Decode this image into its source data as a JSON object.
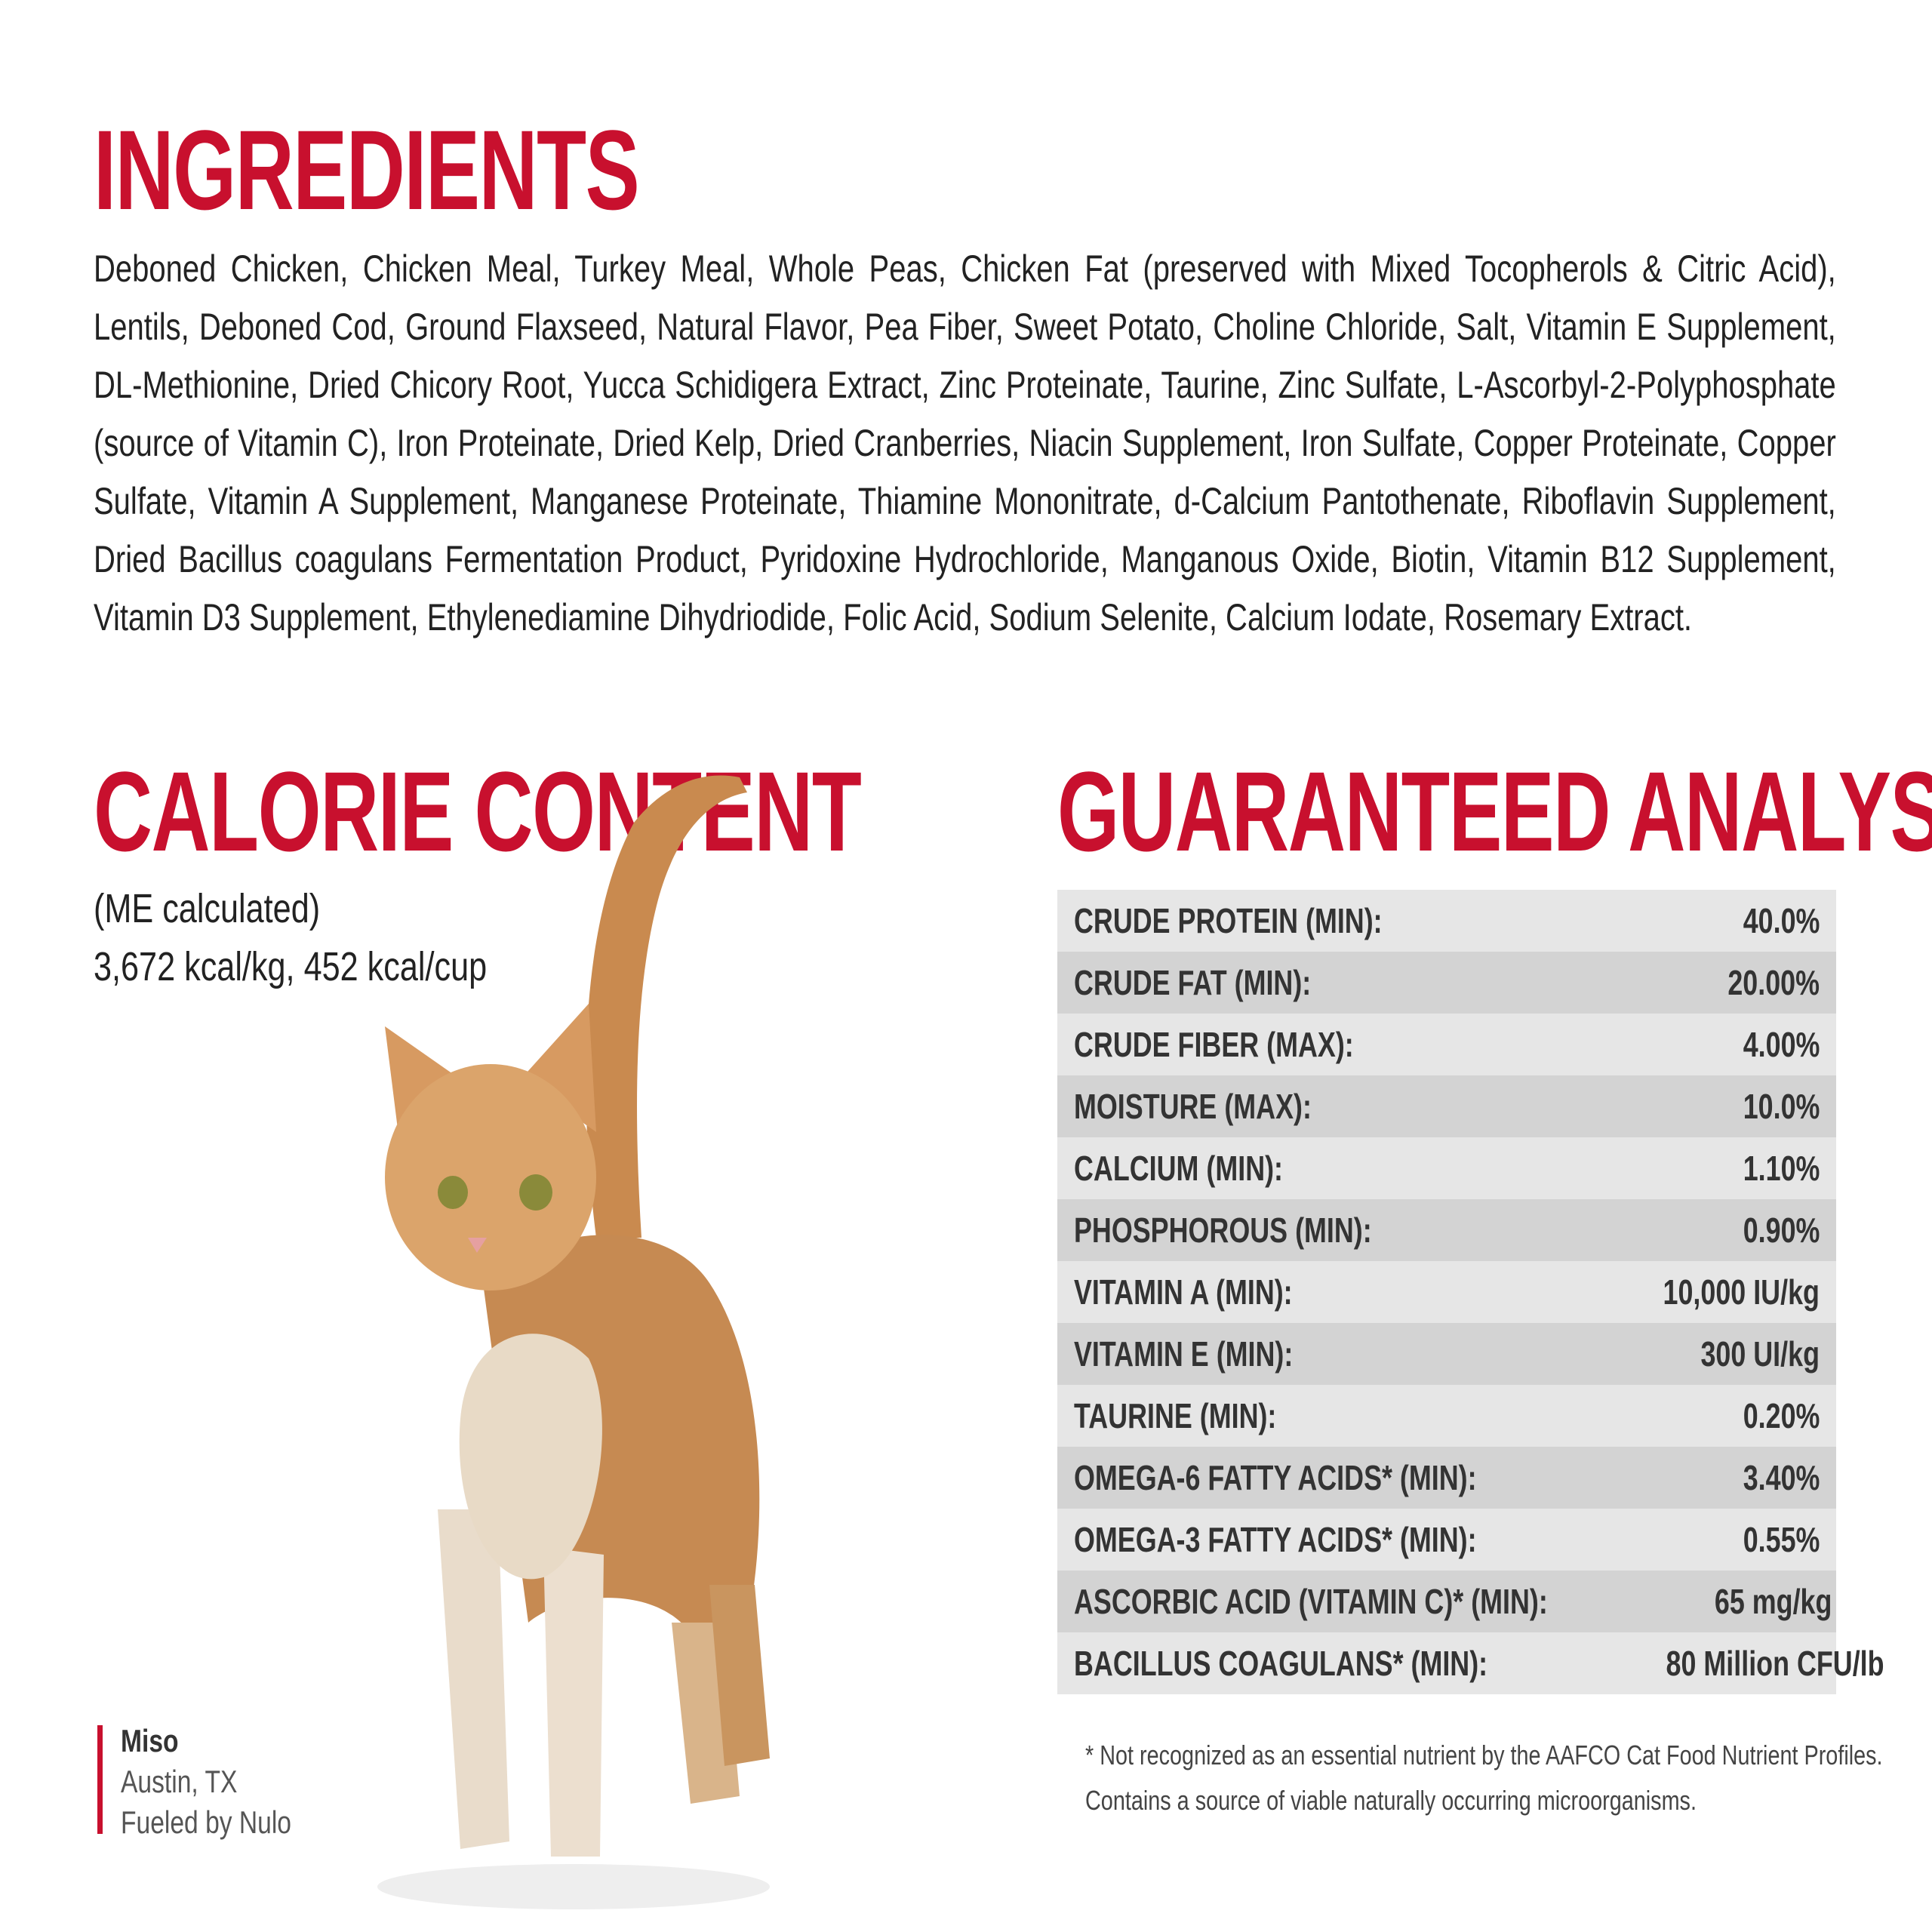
{
  "ingredients": {
    "title": "INGREDIENTS",
    "text": "Deboned Chicken, Chicken Meal, Turkey Meal, Whole Peas, Chicken Fat (preserved with Mixed Tocopherols & Citric Acid), Lentils, Deboned Cod, Ground Flaxseed, Natural Flavor, Pea Fiber, Sweet Potato, Choline Chloride, Salt, Vitamin E Supplement, DL-Methionine, Dried Chicory Root, Yucca Schidigera Extract, Zinc Proteinate, Taurine, Zinc Sulfate, L-Ascorbyl-2-Polyphosphate (source of Vitamin C), Iron Proteinate, Dried Kelp, Dried Cranberries, Niacin Supplement, Iron Sulfate, Copper Proteinate, Copper Sulfate, Vitamin A Supplement, Manganese Proteinate, Thiamine Mononitrate, d-Calcium Pantothenate, Riboflavin Supplement, Dried Bacillus coagulans Fermentation Product, Pyridoxine Hydrochloride, Manganous Oxide, Biotin, Vitamin B12 Supplement, Vitamin D3 Supplement, Ethylenediamine Dihydriodide, Folic Acid, Sodium Selenite, Calcium Iodate, Rosemary Extract."
  },
  "calorie": {
    "title": "CALORIE CONTENT",
    "lines": [
      "(ME calculated)",
      "3,672 kcal/kg, 452 kcal/cup"
    ]
  },
  "analysis": {
    "title": "GUARANTEED ANALYSIS",
    "rows": [
      [
        "CRUDE PROTEIN (MIN):",
        "40.0%"
      ],
      [
        "CRUDE FAT (MIN):",
        "20.00%"
      ],
      [
        "CRUDE FIBER (MAX):",
        "4.00%"
      ],
      [
        "MOISTURE (MAX):",
        "10.0%"
      ],
      [
        "CALCIUM (MIN):",
        "1.10%"
      ],
      [
        "PHOSPHOROUS (MIN):",
        "0.90%"
      ],
      [
        "VITAMIN A (MIN):",
        "10,000 IU/kg"
      ],
      [
        "VITAMIN E (MIN):",
        "300 UI/kg"
      ],
      [
        "TAURINE (MIN):",
        "0.20%"
      ],
      [
        "OMEGA-6 FATTY ACIDS* (MIN):",
        "3.40%"
      ],
      [
        "OMEGA-3 FATTY ACIDS* (MIN):",
        "0.55%"
      ],
      [
        "ASCORBIC ACID (VITAMIN C)* (MIN):",
        "65 mg/kg"
      ],
      [
        "BACILLUS COAGULANS* (MIN):",
        "80 Million CFU/lb"
      ]
    ],
    "footnotes": [
      "* Not recognized as an essential nutrient by the AAFCO Cat Food Nutrient Profiles.",
      "Contains a source of viable naturally occurring microorganisms."
    ]
  },
  "caption": {
    "name": "Miso",
    "lines": [
      "Austin, TX",
      "Fueled by Nulo"
    ]
  }
}
